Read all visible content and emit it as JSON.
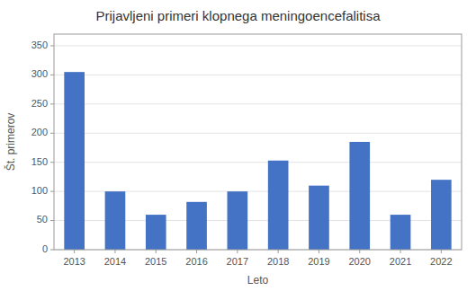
{
  "chart_data": {
    "type": "bar",
    "title": "Prijavljeni primeri klopnega meningoencefalitisa",
    "xlabel": "Leto",
    "ylabel": "Št. primerov",
    "categories": [
      "2013",
      "2014",
      "2015",
      "2016",
      "2017",
      "2018",
      "2019",
      "2020",
      "2021",
      "2022"
    ],
    "values": [
      305,
      100,
      60,
      82,
      100,
      153,
      110,
      185,
      60,
      120
    ],
    "color": "#4472C4",
    "ylim": [
      0,
      370
    ],
    "yticks": [
      0,
      50,
      100,
      150,
      200,
      250,
      300,
      350
    ],
    "grid": true
  }
}
